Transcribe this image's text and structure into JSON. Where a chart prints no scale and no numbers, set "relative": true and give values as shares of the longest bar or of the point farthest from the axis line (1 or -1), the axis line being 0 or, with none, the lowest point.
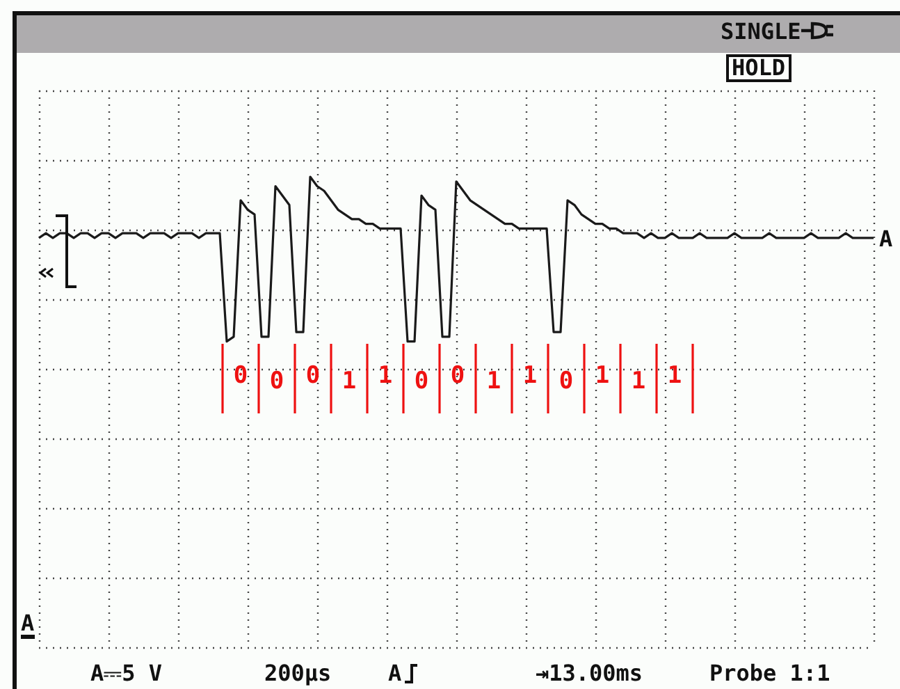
{
  "chart_data": {
    "type": "line",
    "relative": true,
    "grid": true,
    "color": "#1a1a1a",
    "categories": [
      null,
      null,
      null,
      null,
      null,
      null,
      null,
      null,
      null,
      null,
      null,
      null,
      null,
      null,
      null,
      null,
      null,
      null,
      null,
      null,
      null,
      null,
      null,
      null,
      null,
      null,
      null,
      null,
      null,
      null,
      null,
      null,
      null,
      null,
      null,
      null,
      null,
      null,
      null,
      null,
      null,
      null,
      null,
      null,
      null,
      null,
      null,
      null,
      null,
      null,
      null,
      null,
      null,
      null,
      null,
      null,
      null,
      null,
      null,
      null,
      null,
      null,
      null,
      null,
      null,
      null,
      null,
      null,
      null,
      null,
      null,
      null,
      null,
      null,
      null,
      null,
      null,
      null,
      null,
      null,
      null,
      null,
      null,
      null,
      null,
      null,
      null,
      null,
      null,
      null,
      null,
      null,
      null,
      null,
      null,
      null,
      null,
      null,
      null,
      null,
      null,
      null,
      null,
      null,
      null,
      null,
      null,
      null,
      null,
      null,
      null,
      null,
      null,
      null,
      null,
      null,
      null,
      null,
      null,
      null,
      null
    ],
    "values": [
      0.87,
      0.88,
      0.87,
      0.88,
      0.88,
      0.87,
      0.88,
      0.88,
      0.87,
      0.88,
      0.88,
      0.87,
      0.88,
      0.88,
      0.88,
      0.87,
      0.88,
      0.88,
      0.88,
      0.87,
      0.88,
      0.88,
      0.88,
      0.87,
      0.88,
      0.88,
      0.88,
      0.65,
      0.66,
      0.95,
      0.93,
      0.92,
      0.66,
      0.66,
      0.98,
      0.96,
      0.94,
      0.67,
      0.67,
      1.0,
      0.98,
      0.97,
      0.95,
      0.93,
      0.92,
      0.91,
      0.91,
      0.9,
      0.9,
      0.89,
      0.89,
      0.89,
      0.89,
      0.65,
      0.65,
      0.96,
      0.94,
      0.93,
      0.66,
      0.66,
      0.99,
      0.97,
      0.95,
      0.94,
      0.93,
      0.92,
      0.91,
      0.9,
      0.9,
      0.89,
      0.89,
      0.89,
      0.89,
      0.89,
      0.67,
      0.67,
      0.95,
      0.94,
      0.92,
      0.91,
      0.9,
      0.9,
      0.89,
      0.89,
      0.88,
      0.88,
      0.88,
      0.87,
      0.88,
      0.87,
      0.87,
      0.88,
      0.87,
      0.87,
      0.87,
      0.88,
      0.87,
      0.87,
      0.87,
      0.87,
      0.88,
      0.87,
      0.87,
      0.87,
      0.87,
      0.88,
      0.87,
      0.87,
      0.87,
      0.87,
      0.87,
      0.88,
      0.87,
      0.87,
      0.87,
      0.87,
      0.88,
      0.87,
      0.87,
      0.87,
      0.87
    ],
    "annotations": [
      "SINGLE",
      "HOLD",
      "A",
      "A",
      "A⎓5 V",
      "200µs",
      "A",
      "⇥13.00ms",
      "Probe 1:1",
      "0",
      "0",
      "0",
      "1",
      "1",
      "0",
      "0",
      "1",
      "1",
      "0",
      "1",
      "1",
      "1"
    ]
  }
}
